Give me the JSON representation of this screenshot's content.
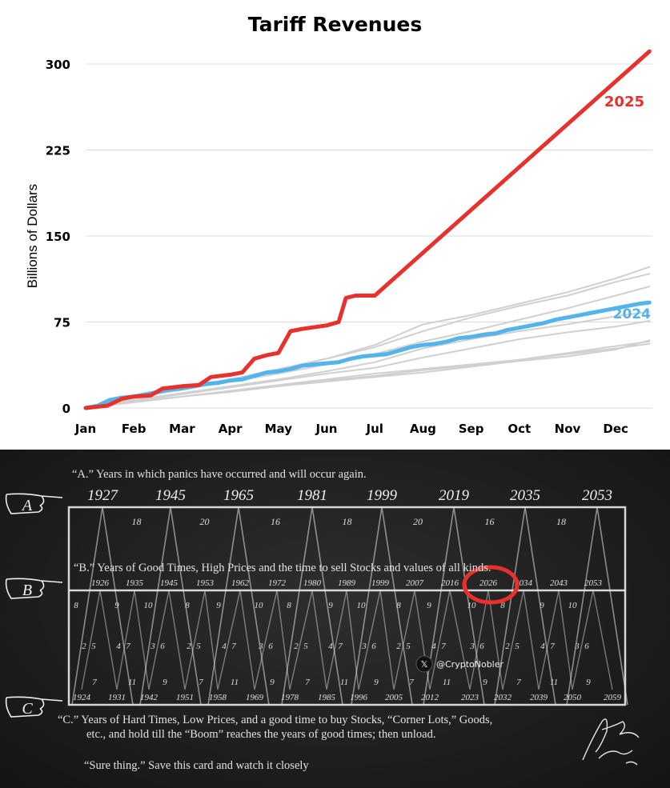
{
  "chart_data": {
    "type": "line",
    "title": "Tariff Revenues",
    "xlabel": "",
    "ylabel": "Billions of Dollars",
    "ylim": [
      0,
      320
    ],
    "yticks": [
      0,
      75,
      150,
      225,
      300
    ],
    "x_categories": [
      "Jan",
      "Feb",
      "Mar",
      "Apr",
      "May",
      "Jun",
      "Jul",
      "Aug",
      "Sep",
      "Oct",
      "Nov",
      "Dec"
    ],
    "grid": true,
    "series": [
      {
        "name": "2025",
        "color": "#e8302c",
        "x": [
          0,
          0.45,
          0.75,
          1.0,
          1.35,
          1.6,
          2.0,
          2.35,
          2.6,
          3.0,
          3.25,
          3.5,
          3.75,
          4.0,
          4.25,
          4.5,
          5.0,
          5.25,
          5.4,
          5.6,
          5.75,
          6.0,
          11.7
        ],
        "values": [
          0,
          2,
          8,
          10,
          11,
          17,
          19,
          20,
          27,
          29,
          31,
          43,
          46,
          48,
          67,
          69,
          72,
          75,
          96,
          98,
          98,
          98,
          311
        ]
      },
      {
        "name": "2024",
        "color": "#52b4ea",
        "x": [
          0,
          0.25,
          0.5,
          0.75,
          1.0,
          1.25,
          1.5,
          1.75,
          2.0,
          2.25,
          2.5,
          2.75,
          3.0,
          3.25,
          3.5,
          3.75,
          4.0,
          4.25,
          4.5,
          4.75,
          5.0,
          5.25,
          5.5,
          5.75,
          6.0,
          6.25,
          6.5,
          6.75,
          7.0,
          7.25,
          7.5,
          7.75,
          8.0,
          8.25,
          8.5,
          8.75,
          9.0,
          9.25,
          9.5,
          9.75,
          10.0,
          10.25,
          10.5,
          10.75,
          11.0,
          11.25,
          11.5,
          11.7
        ],
        "values": [
          0,
          2,
          7,
          9,
          10,
          12,
          14,
          16,
          17,
          19,
          21,
          22,
          24,
          25,
          28,
          31,
          32,
          34,
          37,
          38,
          39,
          40,
          43,
          45,
          46,
          47,
          50,
          53,
          55,
          56,
          58,
          61,
          62,
          64,
          65,
          68,
          70,
          72,
          74,
          77,
          79,
          81,
          83,
          85,
          87,
          89,
          91,
          92
        ]
      },
      {
        "name": "",
        "color": "#d0d0d0",
        "x": [
          0,
          1,
          2,
          3,
          4,
          5,
          6,
          7,
          8,
          9,
          10,
          11,
          11.7
        ],
        "values": [
          0,
          9,
          17,
          25,
          34,
          43,
          55,
          73,
          81,
          91,
          101,
          113,
          123
        ]
      },
      {
        "name": "",
        "color": "#d0d0d0",
        "x": [
          0,
          1,
          2,
          3,
          4,
          5,
          6,
          7,
          8,
          9,
          10,
          11,
          11.7
        ],
        "values": [
          0,
          9,
          17,
          25,
          33,
          43,
          53,
          67,
          79,
          89,
          98,
          110,
          117
        ]
      },
      {
        "name": "",
        "color": "#d0d0d0",
        "x": [
          0,
          1,
          2,
          3,
          4,
          5,
          6,
          7,
          8,
          9,
          10,
          11,
          11.7
        ],
        "values": [
          0,
          9,
          16,
          23,
          30,
          38,
          47,
          58,
          67,
          77,
          87,
          98,
          106
        ]
      },
      {
        "name": "",
        "color": "#d0d0d0",
        "x": [
          0,
          1,
          2,
          3,
          4,
          5,
          6,
          7,
          8,
          9,
          10,
          11,
          11.7
        ],
        "values": [
          0,
          7,
          13,
          19,
          25,
          32,
          40,
          52,
          60,
          67,
          73,
          80,
          84
        ]
      },
      {
        "name": "",
        "color": "#d0d0d0",
        "x": [
          0,
          1,
          2,
          3,
          4,
          5,
          6,
          7,
          8,
          9,
          10,
          11,
          11.7
        ],
        "values": [
          0,
          6,
          12,
          18,
          24,
          30,
          35,
          44,
          52,
          60,
          66,
          71,
          76
        ]
      },
      {
        "name": "",
        "color": "#d0d0d0",
        "x": [
          0,
          1,
          2,
          3,
          4,
          5,
          6,
          7,
          8,
          9,
          10,
          11,
          11.7
        ],
        "values": [
          0,
          5,
          10,
          15,
          20,
          25,
          30,
          34,
          38,
          42,
          48,
          54,
          58
        ]
      },
      {
        "name": "",
        "color": "#d0d0d0",
        "x": [
          0,
          1,
          2,
          3,
          4,
          5,
          6,
          7,
          8,
          9,
          10,
          11,
          11.7
        ],
        "values": [
          0,
          5,
          10,
          14,
          19,
          24,
          28,
          33,
          37,
          42,
          47,
          52,
          56
        ]
      },
      {
        "name": "",
        "color": "#d0d0d0",
        "x": [
          0,
          1,
          2,
          3,
          4,
          5,
          6,
          7,
          8,
          9,
          10,
          11,
          11.7
        ],
        "values": [
          0,
          5,
          10,
          14,
          19,
          23,
          27,
          31,
          36,
          41,
          45,
          51,
          59
        ]
      }
    ]
  },
  "card": {
    "line_a": "“A.” Years in which panics have occurred and will occur again.",
    "line_b": "“B.” Years of Good Times, High Prices and the time to sell Stocks and values of all kinds.",
    "line_c1": "“C.”  Years of Hard Times, Low Prices, and a good time to buy Stocks, “Corner Lots,” Goods,",
    "line_c2": "etc., and hold till  the “Boom” reaches the years of good times; then unload.",
    "line_sure": "“Sure thing.” Save this card and watch it closely",
    "label_a": "A",
    "label_b": "B",
    "label_c": "C",
    "panic_years": [
      "1927",
      "1945",
      "1965",
      "1981",
      "1999",
      "2019",
      "2035",
      "2053"
    ],
    "panic_intervals": [
      "18",
      "20",
      "16",
      "18",
      "20",
      "16",
      "18"
    ],
    "good_years": [
      "1926",
      "1935",
      "1945",
      "1953",
      "1962",
      "1972",
      "1980",
      "1989",
      "1999",
      "2007",
      "2016",
      "2026",
      "2034",
      "2043",
      "2053"
    ],
    "hard_years": [
      "1924",
      "1931",
      "1942",
      "1951",
      "1958",
      "1969",
      "1978",
      "1985",
      "1996",
      "2005",
      "2012",
      "2023",
      "2032",
      "2039",
      "2050",
      "2059"
    ],
    "highlight_year": "2026",
    "watermark": "@CryptoNobler",
    "signature": "Samuel Benner 1875",
    "mid_numbers": [
      [
        "8",
        "9",
        "10",
        "8",
        "9",
        "10",
        "8",
        "9",
        "10",
        "8",
        "9",
        "10",
        "8",
        "9",
        "10"
      ],
      [
        "2",
        "5",
        "4",
        "7",
        "3",
        "6",
        "2",
        "5",
        "4",
        "7",
        "3",
        "6",
        "2",
        "5",
        "4",
        "7",
        "3",
        "6",
        "2",
        "5",
        "4",
        "7",
        "3",
        "6",
        "2",
        "5",
        "4",
        "7",
        "3",
        "6"
      ],
      [
        "7",
        "11",
        "9",
        "7",
        "11",
        "9",
        "7",
        "11",
        "9",
        "7",
        "11",
        "9",
        "7",
        "11",
        "9"
      ]
    ]
  }
}
